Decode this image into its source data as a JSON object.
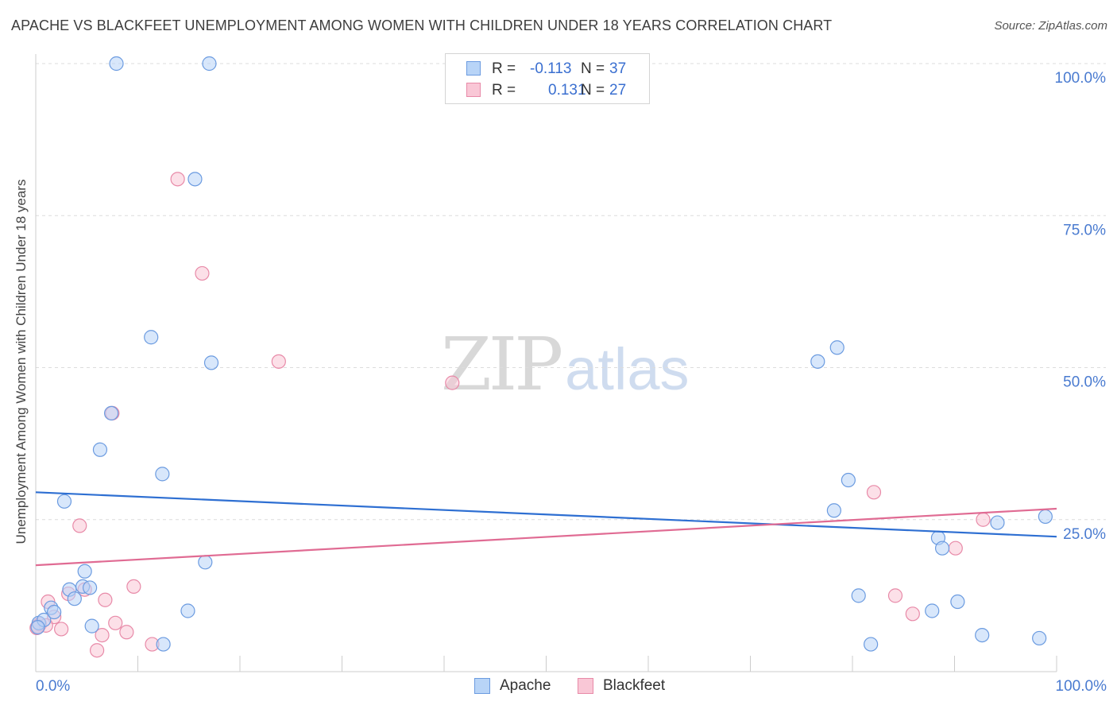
{
  "title": "APACHE VS BLACKFEET UNEMPLOYMENT AMONG WOMEN WITH CHILDREN UNDER 18 YEARS CORRELATION CHART",
  "source": "Source: ZipAtlas.com",
  "watermark": {
    "zip": "ZIP",
    "atlas": "atlas"
  },
  "legend": {
    "rows": [
      {
        "r_label": "R =",
        "r_value": "-0.113",
        "n_label": "N =",
        "n_value": "37",
        "swatch_fill": "#b8d4f7",
        "swatch_stroke": "#6b9be0"
      },
      {
        "r_label": "R =",
        "r_value": "0.131",
        "n_label": "N =",
        "n_value": "27",
        "swatch_fill": "#f9c7d6",
        "swatch_stroke": "#e88aa8"
      }
    ]
  },
  "bottom_legend": [
    {
      "label": "Apache",
      "fill": "#b8d4f7",
      "stroke": "#6b9be0"
    },
    {
      "label": "Blackfeet",
      "fill": "#f9c7d6",
      "stroke": "#e88aa8"
    }
  ],
  "chart_data": {
    "type": "scatter",
    "title": "APACHE VS BLACKFEET UNEMPLOYMENT AMONG WOMEN WITH CHILDREN UNDER 18 YEARS CORRELATION CHART",
    "xlabel": "",
    "ylabel": "Unemployment Among Women with Children Under 18 years",
    "xlim": [
      0,
      100
    ],
    "ylim": [
      0,
      100
    ],
    "x_tick_labels": [
      "0.0%",
      "100.0%"
    ],
    "y_ticks": [
      25,
      50,
      75,
      100
    ],
    "y_tick_labels": [
      "25.0%",
      "50.0%",
      "75.0%",
      "100.0%"
    ],
    "grid": true,
    "legend_position": "top-center",
    "series": [
      {
        "name": "Apache",
        "color": "#b8d4f7",
        "stroke": "#6b9be0",
        "line_color": "#2e6fd2",
        "trend": {
          "x": [
            0,
            100
          ],
          "y": [
            29.5,
            22.2
          ]
        },
        "points": [
          [
            0.3,
            8.0
          ],
          [
            0.8,
            8.5
          ],
          [
            1.5,
            10.5
          ],
          [
            1.8,
            9.8
          ],
          [
            2.8,
            28.0
          ],
          [
            3.3,
            13.5
          ],
          [
            3.8,
            12.0
          ],
          [
            4.8,
            16.5
          ],
          [
            4.6,
            14.0
          ],
          [
            5.3,
            13.8
          ],
          [
            5.5,
            7.5
          ],
          [
            6.3,
            36.5
          ],
          [
            7.4,
            42.5
          ],
          [
            7.9,
            100.0
          ],
          [
            11.3,
            55.0
          ],
          [
            12.4,
            32.5
          ],
          [
            12.5,
            4.5
          ],
          [
            14.9,
            10.0
          ],
          [
            15.6,
            81.0
          ],
          [
            16.6,
            18.0
          ],
          [
            17.0,
            100.0
          ],
          [
            17.2,
            50.8
          ],
          [
            76.6,
            51.0
          ],
          [
            78.5,
            53.3
          ],
          [
            78.2,
            26.5
          ],
          [
            79.6,
            31.5
          ],
          [
            80.6,
            12.5
          ],
          [
            81.8,
            4.5
          ],
          [
            87.8,
            10.0
          ],
          [
            88.4,
            22.0
          ],
          [
            88.8,
            20.3
          ],
          [
            90.3,
            11.5
          ],
          [
            92.7,
            6.0
          ],
          [
            94.2,
            24.5
          ],
          [
            98.3,
            5.5
          ],
          [
            98.9,
            25.5
          ],
          [
            0.2,
            7.3
          ]
        ]
      },
      {
        "name": "Blackfeet",
        "color": "#f9c7d6",
        "stroke": "#e88aa8",
        "line_color": "#e06b93",
        "trend": {
          "x": [
            0,
            100
          ],
          "y": [
            17.5,
            26.8
          ]
        },
        "points": [
          [
            0.2,
            7.5
          ],
          [
            1.2,
            11.5
          ],
          [
            1.8,
            9.0
          ],
          [
            2.5,
            7.0
          ],
          [
            3.2,
            12.8
          ],
          [
            4.3,
            24.0
          ],
          [
            4.8,
            13.5
          ],
          [
            6.0,
            3.5
          ],
          [
            6.5,
            6.0
          ],
          [
            6.8,
            11.8
          ],
          [
            7.5,
            42.5
          ],
          [
            7.8,
            8.0
          ],
          [
            8.9,
            6.5
          ],
          [
            9.6,
            14.0
          ],
          [
            11.4,
            4.5
          ],
          [
            13.9,
            81.0
          ],
          [
            16.3,
            65.5
          ],
          [
            23.8,
            51.0
          ],
          [
            40.8,
            47.5
          ],
          [
            82.1,
            29.5
          ],
          [
            84.2,
            12.5
          ],
          [
            85.9,
            9.5
          ],
          [
            90.1,
            20.3
          ],
          [
            92.8,
            25.0
          ],
          [
            0.4,
            7.8
          ],
          [
            1.0,
            7.6
          ],
          [
            0.1,
            7.2
          ]
        ]
      }
    ]
  }
}
